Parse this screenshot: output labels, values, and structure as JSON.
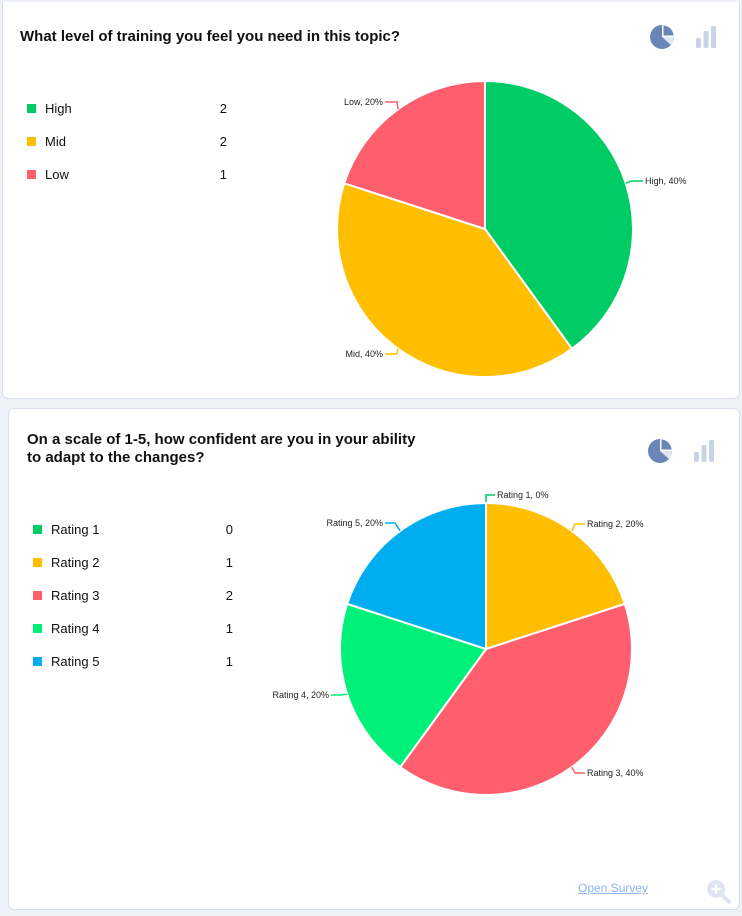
{
  "panels": [
    {
      "question": "What level of training you feel you need in this topic?",
      "legend": [
        {
          "label": "High",
          "count": "2"
        },
        {
          "label": "Mid",
          "count": "2"
        },
        {
          "label": "Low",
          "count": "1"
        }
      ]
    },
    {
      "question": "On a scale of 1-5, how confident are you in your ability to adapt to the changes?",
      "legend": [
        {
          "label": "Rating 1",
          "count": "0"
        },
        {
          "label": "Rating 2",
          "count": "1"
        },
        {
          "label": "Rating 3",
          "count": "2"
        },
        {
          "label": "Rating 4",
          "count": "1"
        },
        {
          "label": "Rating 5",
          "count": "1"
        }
      ],
      "open_survey": "Open Survey"
    }
  ],
  "icons": {
    "pie_toggle": "pie-chart-icon",
    "bar_toggle": "bar-chart-icon",
    "zoom": "zoom-in-icon"
  },
  "colors": {
    "green": "#00cc66",
    "amber": "#ffbf00",
    "red": "#ff5e6d",
    "bright_green": "#00f07a",
    "blue": "#00aef0",
    "icon_active": "#6a86b8",
    "icon_inactive": "#c8d3e6",
    "link": "#8ab4ea"
  },
  "chart_data": [
    {
      "type": "pie",
      "categories": [
        "High",
        "Mid",
        "Low"
      ],
      "values": [
        2,
        2,
        1
      ],
      "labels": [
        "High, 40%",
        "Mid, 40%",
        "Low, 20%"
      ],
      "colors": [
        "#00cc66",
        "#ffbf00",
        "#ff5e6d"
      ],
      "start": "12 o'clock, clockwise",
      "legend": "left"
    },
    {
      "type": "pie",
      "categories": [
        "Rating 1",
        "Rating 2",
        "Rating 3",
        "Rating 4",
        "Rating 5"
      ],
      "values": [
        0,
        1,
        2,
        1,
        1
      ],
      "labels": [
        "Rating 1, 0%",
        "Rating 2, 20%",
        "Rating 3, 40%",
        "Rating 4, 20%",
        "Rating 5, 20%"
      ],
      "colors": [
        "#00cc66",
        "#ffbf00",
        "#ff5e6d",
        "#00f07a",
        "#00aef0"
      ],
      "start": "12 o'clock, clockwise",
      "legend": "left"
    }
  ]
}
